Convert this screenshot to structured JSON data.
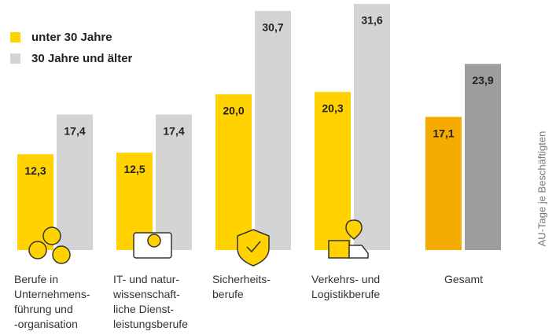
{
  "chart_data": {
    "type": "bar",
    "y_label": "AU-Tage je Beschäftigten",
    "categories": [
      "Berufe in\nUnternehmens-\nführung und\n-organisation",
      "IT- und natur-\nwissenschaft-\nliche Dienst-\nleistungsberufe",
      "Sicherheits-\nberufe",
      "Verkehrs- und\nLogistikberufe",
      "Gesamt"
    ],
    "series": [
      {
        "name": "unter 30 Jahre",
        "color": "#ffd200",
        "point_colors": [
          "#ffd200",
          "#ffd200",
          "#ffd200",
          "#ffd200",
          "#f6ab00"
        ],
        "values": [
          12.3,
          12.5,
          20.0,
          20.3,
          17.1
        ],
        "value_labels": [
          "12,3",
          "12,5",
          "20,0",
          "20,3",
          "17,1"
        ]
      },
      {
        "name": "30 Jahre und älter",
        "color": "#d4d4d4",
        "point_colors": [
          "#d4d4d4",
          "#d4d4d4",
          "#d4d4d4",
          "#d4d4d4",
          "#9d9d9d"
        ],
        "values": [
          17.4,
          17.4,
          30.7,
          31.6,
          23.9
        ],
        "value_labels": [
          "17,4",
          "17,4",
          "30,7",
          "31,6",
          "23,9"
        ]
      }
    ],
    "ylim": [
      0,
      32
    ],
    "legend": "top-left"
  }
}
